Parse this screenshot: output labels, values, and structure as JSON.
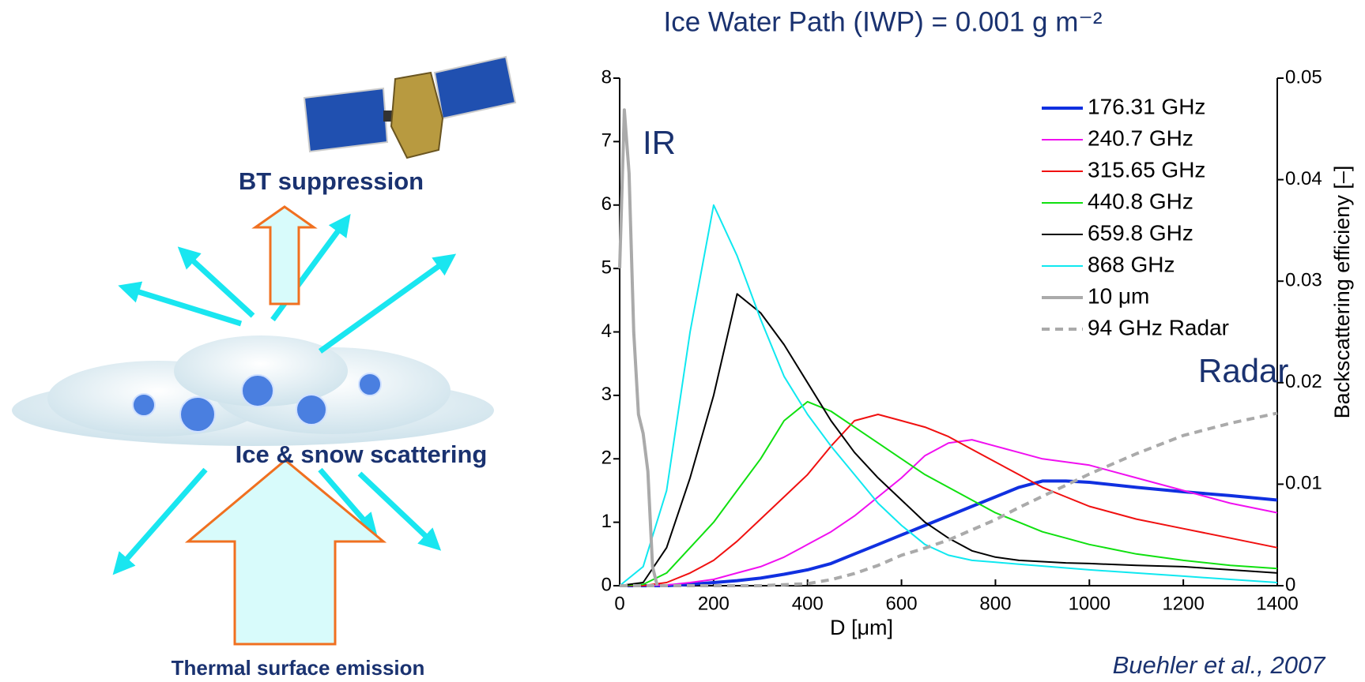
{
  "diagram": {
    "top_label": "BT suppression",
    "middle_label": "Ice & snow scattering",
    "bottom_label": "Thermal surface emission"
  },
  "citation": "Buehler et al., 2007",
  "chart_data": {
    "type": "line",
    "title": "Ice Water Path (IWP) = 0.001 g m⁻²",
    "x_label": "D [μm]",
    "y2_label": "Backscattering efficieny [–]",
    "annotations": [
      "IR",
      "Radar"
    ],
    "x": [
      0,
      50,
      100,
      150,
      200,
      250,
      300,
      350,
      400,
      450,
      500,
      550,
      600,
      650,
      700,
      750,
      800,
      850,
      900,
      950,
      1000,
      1100,
      1200,
      1300,
      1400
    ],
    "xlim": [
      0,
      1400
    ],
    "xticks": [
      0,
      200,
      400,
      600,
      800,
      1000,
      1200,
      1400
    ],
    "ylim": [
      0,
      8
    ],
    "yticks": [
      0,
      1,
      2,
      3,
      4,
      5,
      6,
      7,
      8
    ],
    "y2lim": [
      0,
      0.05
    ],
    "y2ticks": [
      0,
      0.01,
      0.02,
      0.03,
      0.04,
      0.05
    ],
    "series": [
      {
        "name": "176.31 GHz",
        "color": "#1030e0",
        "width": 4,
        "values": [
          0,
          0,
          0,
          0.02,
          0.05,
          0.08,
          0.12,
          0.18,
          0.25,
          0.35,
          0.5,
          0.65,
          0.8,
          0.95,
          1.1,
          1.25,
          1.4,
          1.55,
          1.65,
          1.65,
          1.63,
          1.55,
          1.48,
          1.42,
          1.35
        ]
      },
      {
        "name": "240.7 GHz",
        "color": "#f010f0",
        "width": 2,
        "values": [
          0,
          0,
          0.01,
          0.05,
          0.1,
          0.2,
          0.3,
          0.45,
          0.65,
          0.85,
          1.1,
          1.4,
          1.7,
          2.05,
          2.25,
          2.3,
          2.2,
          2.1,
          2.0,
          1.95,
          1.9,
          1.7,
          1.5,
          1.3,
          1.15
        ]
      },
      {
        "name": "315.65 GHz",
        "color": "#f01010",
        "width": 2,
        "values": [
          0,
          0,
          0.05,
          0.2,
          0.4,
          0.7,
          1.05,
          1.4,
          1.75,
          2.2,
          2.6,
          2.7,
          2.6,
          2.5,
          2.35,
          2.15,
          1.95,
          1.75,
          1.55,
          1.4,
          1.25,
          1.05,
          0.9,
          0.75,
          0.6
        ]
      },
      {
        "name": "440.8 GHz",
        "color": "#10e010",
        "width": 2,
        "values": [
          0,
          0.02,
          0.2,
          0.6,
          1.0,
          1.5,
          2.0,
          2.6,
          2.9,
          2.75,
          2.5,
          2.25,
          2.0,
          1.75,
          1.55,
          1.35,
          1.15,
          1.0,
          0.85,
          0.75,
          0.65,
          0.5,
          0.4,
          0.32,
          0.27
        ]
      },
      {
        "name": "659.8 GHz",
        "color": "#000000",
        "width": 2,
        "values": [
          0,
          0.05,
          0.6,
          1.7,
          3.0,
          4.6,
          4.3,
          3.8,
          3.2,
          2.6,
          2.1,
          1.7,
          1.35,
          1.0,
          0.75,
          0.55,
          0.45,
          0.4,
          0.38,
          0.36,
          0.35,
          0.32,
          0.3,
          0.25,
          0.2
        ]
      },
      {
        "name": "868 GHz",
        "color": "#10e8f0",
        "width": 2,
        "values": [
          0,
          0.3,
          1.5,
          4.0,
          6.0,
          5.2,
          4.2,
          3.3,
          2.7,
          2.2,
          1.75,
          1.3,
          0.95,
          0.65,
          0.48,
          0.4,
          0.37,
          0.34,
          0.31,
          0.28,
          0.25,
          0.2,
          0.15,
          0.1,
          0.05
        ]
      },
      {
        "name": "10 μm",
        "color": "#aaaaaa",
        "width": 4,
        "x": [
          0,
          10,
          20,
          30,
          40,
          50,
          60,
          70,
          80
        ],
        "values": [
          5.0,
          7.5,
          6.5,
          4.0,
          2.7,
          2.4,
          1.8,
          0.3,
          0
        ]
      },
      {
        "name": "94 GHz Radar",
        "color": "#aaaaaa",
        "width": 4,
        "dashed": true,
        "axis": "y2",
        "values": [
          0,
          0,
          0,
          0,
          0,
          0,
          0,
          0.0001,
          0.0002,
          0.0006,
          0.0012,
          0.002,
          0.003,
          0.0037,
          0.0045,
          0.0055,
          0.0065,
          0.0077,
          0.0088,
          0.0099,
          0.011,
          0.013,
          0.0148,
          0.016,
          0.017
        ]
      }
    ]
  }
}
